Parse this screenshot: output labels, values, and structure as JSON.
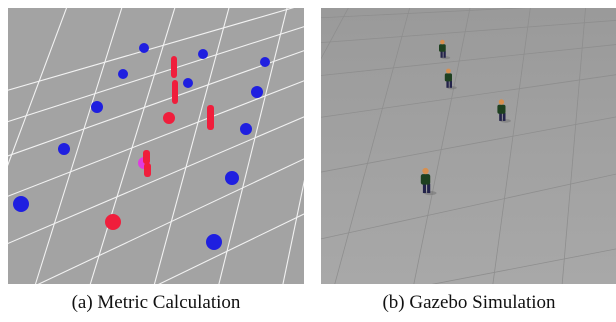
{
  "figure": {
    "panels": [
      {
        "caption": "(a) Metric Calculation"
      },
      {
        "caption": "(b) Gazebo Simulation"
      }
    ]
  },
  "colors": {
    "ground": "#a3a3a3",
    "grid_a": "#f2f2f2",
    "grid_b": "#8e8e8e",
    "agent_blue": "#1f1fe0",
    "agent_red": "#f01e3c",
    "highlight_magenta": "#e03ce0",
    "person_shirt": "#1e4020",
    "person_head": "#d89050",
    "person_legs": "#23234a"
  }
}
